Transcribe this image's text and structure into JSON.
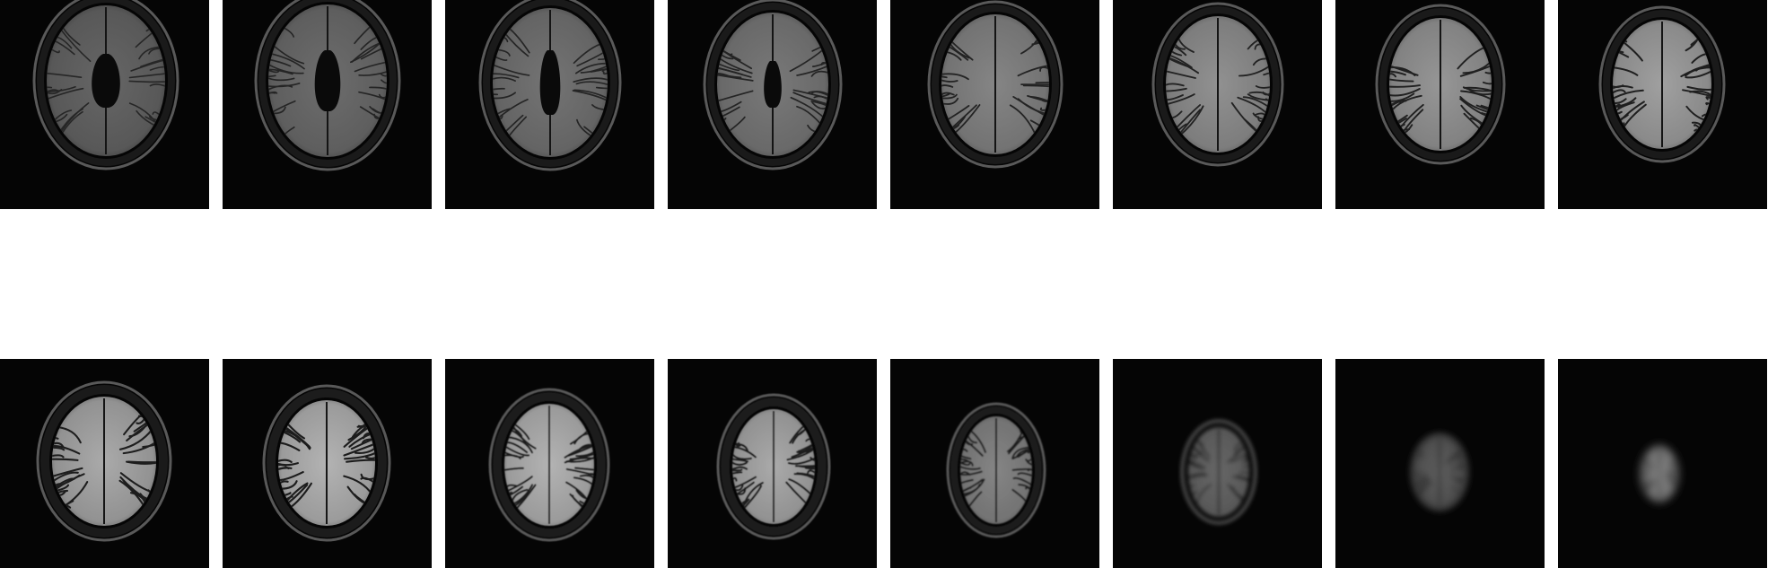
{
  "grid": {
    "rows": 2,
    "columns": 8,
    "background_color": "#ffffff",
    "tile_background_color": "#050505",
    "tiles": [
      {
        "slice": 1,
        "row": 0,
        "col": 0,
        "description": "axial-flair-slice-lateral-ventricles",
        "ventricles": true
      },
      {
        "slice": 2,
        "row": 0,
        "col": 1,
        "description": "axial-flair-slice-lateral-ventricles",
        "ventricles": true
      },
      {
        "slice": 3,
        "row": 0,
        "col": 2,
        "description": "axial-flair-slice-lateral-ventricles",
        "ventricles": true
      },
      {
        "slice": 4,
        "row": 0,
        "col": 3,
        "description": "axial-flair-slice-lateral-ventricles",
        "ventricles": true
      },
      {
        "slice": 5,
        "row": 0,
        "col": 4,
        "description": "axial-flair-slice-upper",
        "ventricles": false
      },
      {
        "slice": 6,
        "row": 0,
        "col": 5,
        "description": "axial-flair-slice-upper",
        "ventricles": false
      },
      {
        "slice": 7,
        "row": 0,
        "col": 6,
        "description": "axial-flair-slice-upper",
        "ventricles": false
      },
      {
        "slice": 8,
        "row": 0,
        "col": 7,
        "description": "axial-flair-slice-upper",
        "ventricles": false
      },
      {
        "slice": 9,
        "row": 1,
        "col": 0,
        "description": "axial-flair-slice-vertex",
        "ventricles": false
      },
      {
        "slice": 10,
        "row": 1,
        "col": 1,
        "description": "axial-flair-slice-vertex",
        "ventricles": false
      },
      {
        "slice": 11,
        "row": 1,
        "col": 2,
        "description": "axial-flair-slice-vertex",
        "ventricles": false
      },
      {
        "slice": 12,
        "row": 1,
        "col": 3,
        "description": "axial-flair-slice-vertex",
        "ventricles": false
      },
      {
        "slice": 13,
        "row": 1,
        "col": 4,
        "description": "axial-flair-slice-vertex",
        "ventricles": false
      },
      {
        "slice": 14,
        "row": 1,
        "col": 5,
        "description": "axial-flair-slice-blurred-vertex",
        "ventricles": false
      },
      {
        "slice": 15,
        "row": 1,
        "col": 6,
        "description": "axial-flair-slice-blurred-vertex",
        "ventricles": false
      },
      {
        "slice": 16,
        "row": 1,
        "col": 7,
        "description": "axial-flair-slice-blurred-vertex",
        "ventricles": false
      }
    ]
  }
}
